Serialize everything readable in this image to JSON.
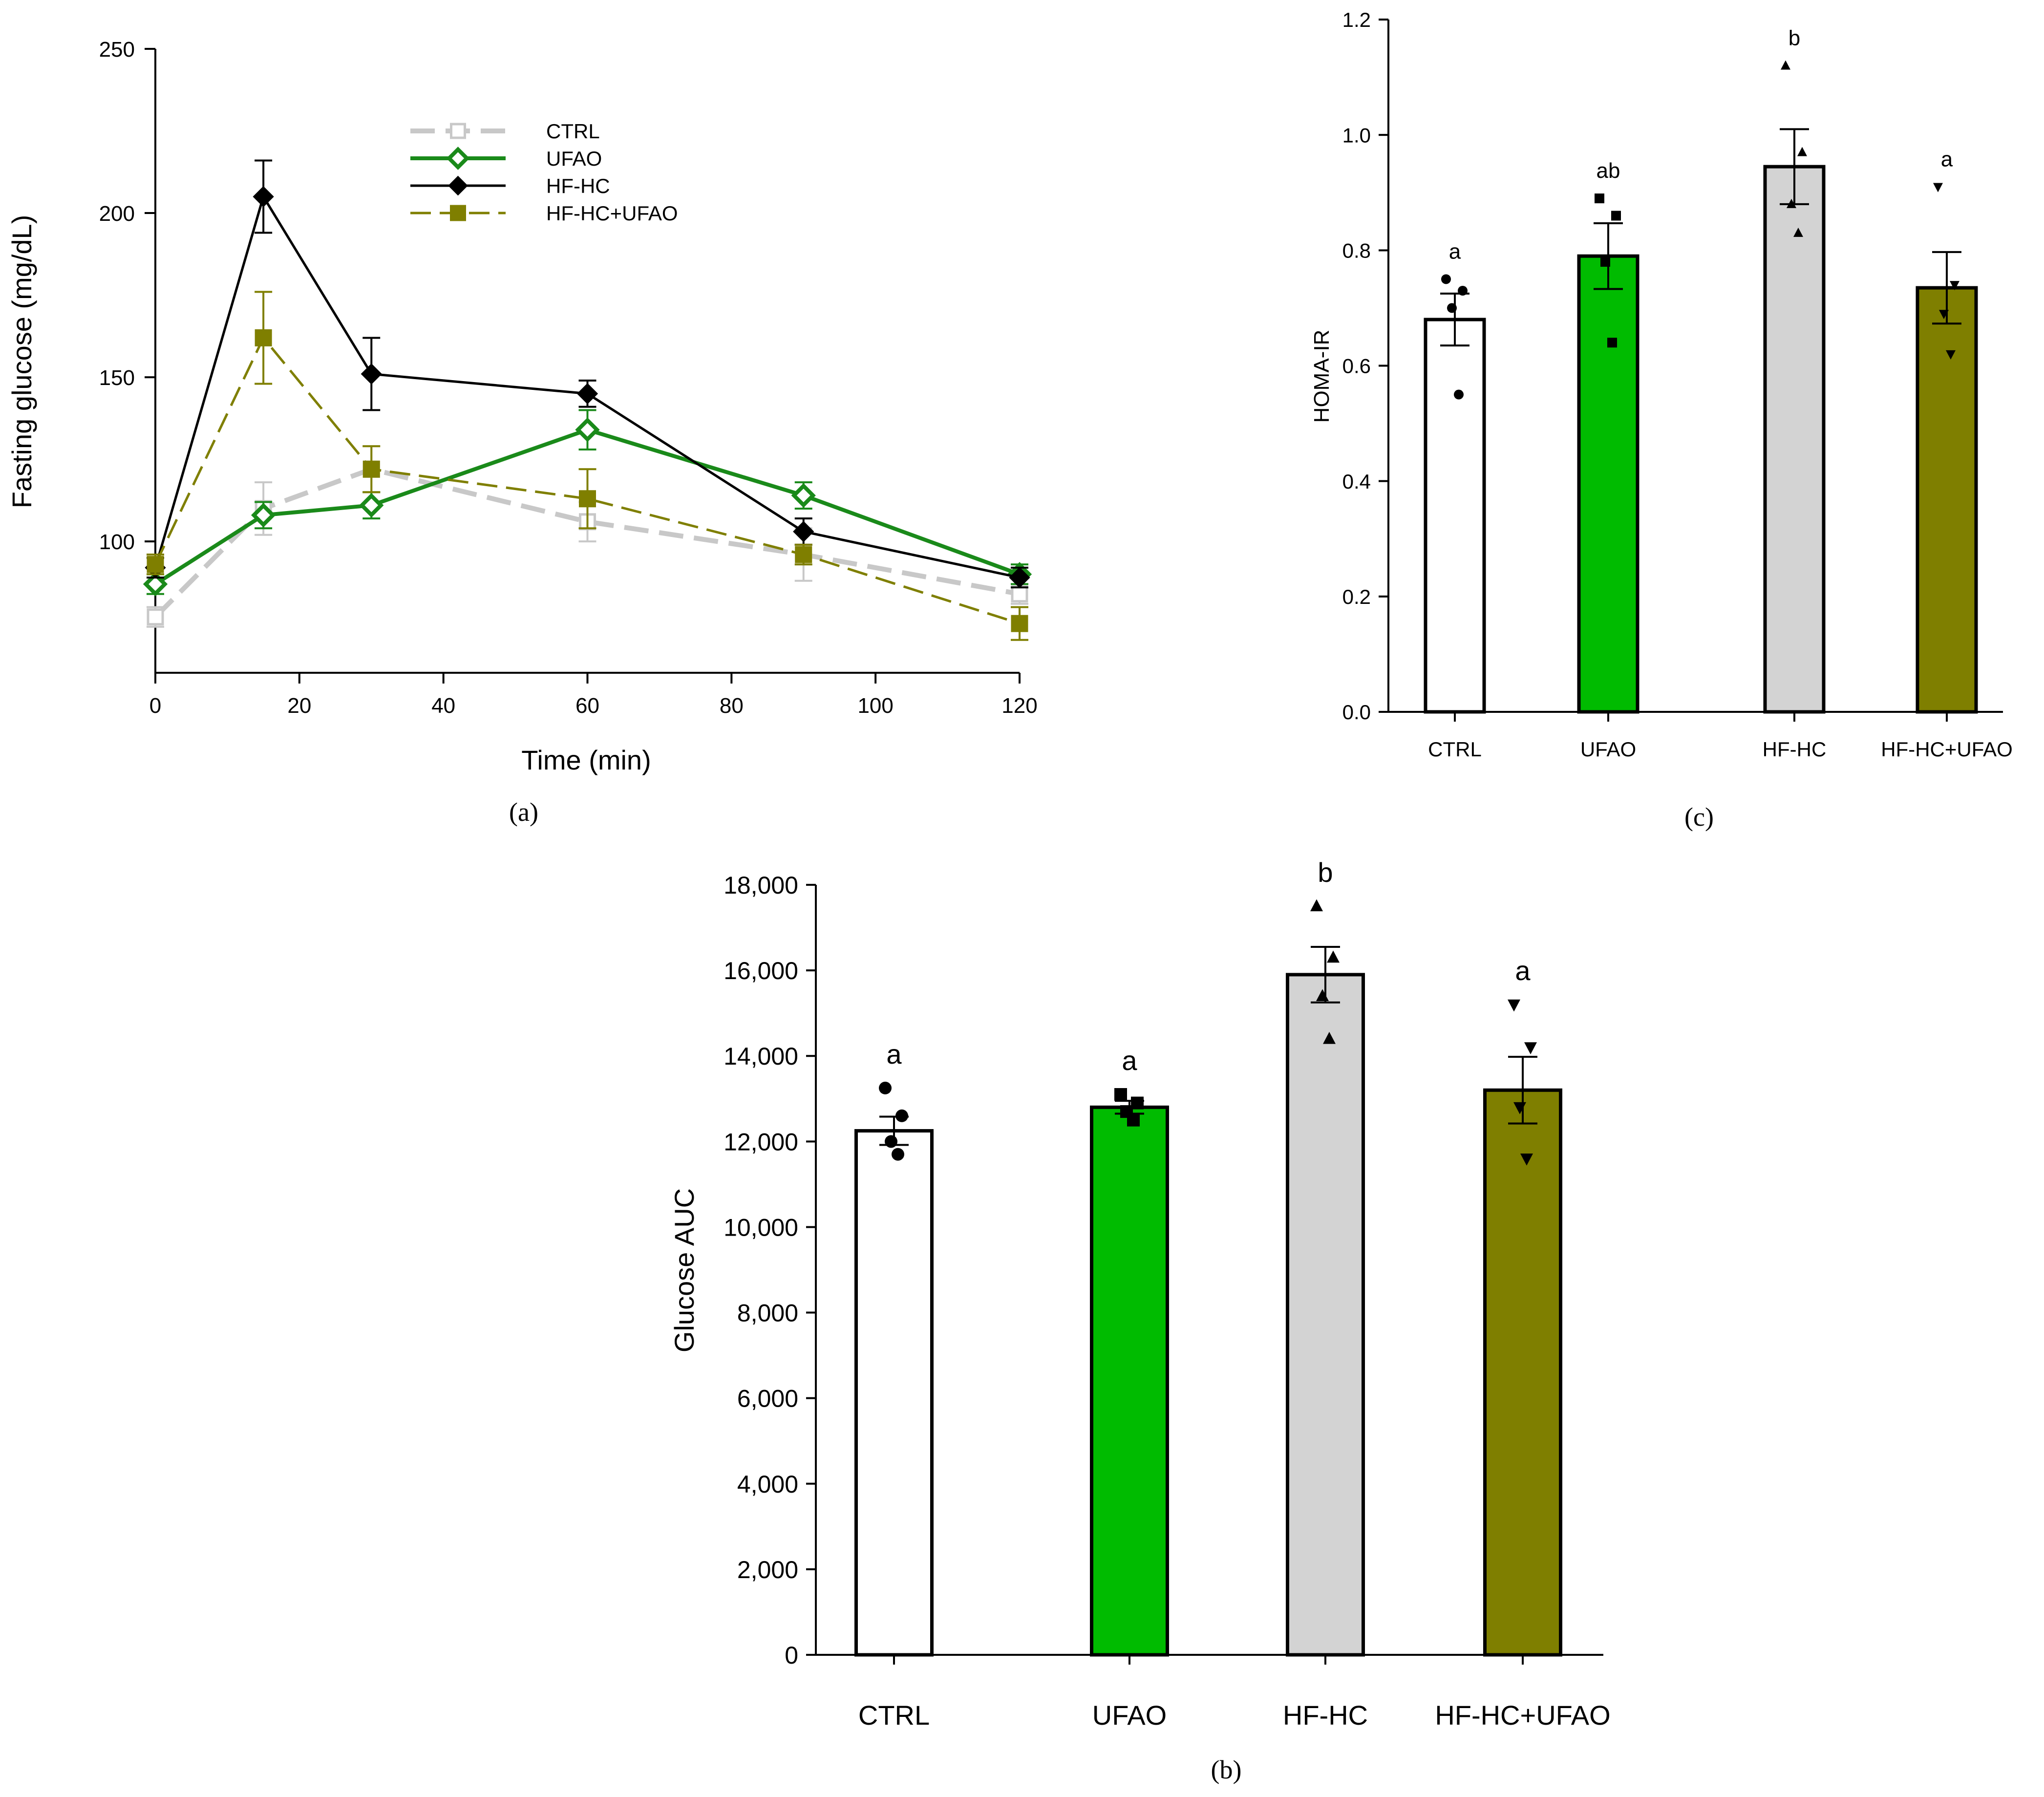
{
  "chart_data": [
    {
      "id": "a",
      "type": "line",
      "panel_label": "(a)",
      "xlabel": "Time (min)",
      "ylabel": "Fasting glucose (mg/dL)",
      "xlim": [
        0,
        120
      ],
      "ylim": [
        60,
        250
      ],
      "xticks": [
        0,
        20,
        40,
        60,
        80,
        100,
        120
      ],
      "yticks": [
        100,
        150,
        200,
        250
      ],
      "x": [
        0,
        15,
        30,
        60,
        90,
        120
      ],
      "legend_position": "top-right",
      "series": [
        {
          "name": "CTRL",
          "color": "#c8c8c8",
          "dashed": true,
          "marker": "open-square",
          "values": [
            77,
            110,
            122,
            106,
            96,
            84
          ],
          "errors": [
            3,
            8,
            7,
            6,
            8,
            3
          ]
        },
        {
          "name": "UFAO",
          "color": "#1a8a1a",
          "dashed": false,
          "marker": "open-diamond",
          "values": [
            87,
            108,
            111,
            134,
            114,
            90
          ],
          "errors": [
            3,
            4,
            4,
            6,
            4,
            3
          ]
        },
        {
          "name": "HF-HC",
          "color": "#000000",
          "dashed": false,
          "marker": "filled-diamond",
          "values": [
            92,
            205,
            151,
            145,
            103,
            89
          ],
          "errors": [
            3,
            11,
            11,
            4,
            4,
            3
          ]
        },
        {
          "name": "HF-HC+UFAO",
          "color": "#7f7f00",
          "dashed": true,
          "marker": "filled-square",
          "values": [
            93,
            162,
            122,
            113,
            96,
            75
          ],
          "errors": [
            3,
            14,
            7,
            9,
            3,
            5
          ]
        }
      ]
    },
    {
      "id": "c",
      "type": "bar",
      "panel_label": "(c)",
      "ylabel": "HOMA-IR",
      "ylim": [
        0,
        1.2
      ],
      "yticks": [
        "0.0",
        "0.2",
        "0.4",
        "0.6",
        "0.8",
        "1.0",
        "1.2"
      ],
      "categories": [
        "CTRL",
        "UFAO",
        "HF-HC",
        "HF-HC+UFAO"
      ],
      "values": [
        0.68,
        0.79,
        0.945,
        0.735
      ],
      "errors": [
        0.045,
        0.057,
        0.065,
        0.062
      ],
      "colors": [
        "#ffffff",
        "#00bb00",
        "#d3d3d3",
        "#7f7f00"
      ],
      "letters": [
        "a",
        "ab",
        "b",
        "a"
      ],
      "markers": [
        "circle",
        "square",
        "triangle-up",
        "triangle-down"
      ],
      "points": [
        [
          0.75,
          0.73,
          0.7,
          0.55
        ],
        [
          0.89,
          0.86,
          0.78,
          0.64
        ],
        [
          1.12,
          0.97,
          0.88,
          0.83
        ],
        [
          0.91,
          0.74,
          0.69,
          0.62
        ]
      ]
    },
    {
      "id": "b",
      "type": "bar",
      "panel_label": "(b)",
      "ylabel": "Glucose AUC",
      "ylim": [
        0,
        18000
      ],
      "yticks": [
        "0",
        "2,000",
        "4,000",
        "6,000",
        "8,000",
        "10,000",
        "12,000",
        "14,000",
        "16,000",
        "18,000"
      ],
      "categories": [
        "CTRL",
        "UFAO",
        "HF-HC",
        "HF-HC+UFAO"
      ],
      "values": [
        12250,
        12800,
        15900,
        13200
      ],
      "errors": [
        330,
        150,
        650,
        780
      ],
      "colors": [
        "#ffffff",
        "#00bb00",
        "#d3d3d3",
        "#7f7f00"
      ],
      "letters": [
        "a",
        "a",
        "b",
        "a"
      ],
      "markers": [
        "circle",
        "square",
        "triangle-up",
        "triangle-down"
      ],
      "points": [
        [
          13250,
          12600,
          12000,
          11700
        ],
        [
          13100,
          12900,
          12700,
          12500
        ],
        [
          17500,
          16300,
          15400,
          14400
        ],
        [
          15200,
          14200,
          12800,
          11600
        ]
      ]
    }
  ]
}
